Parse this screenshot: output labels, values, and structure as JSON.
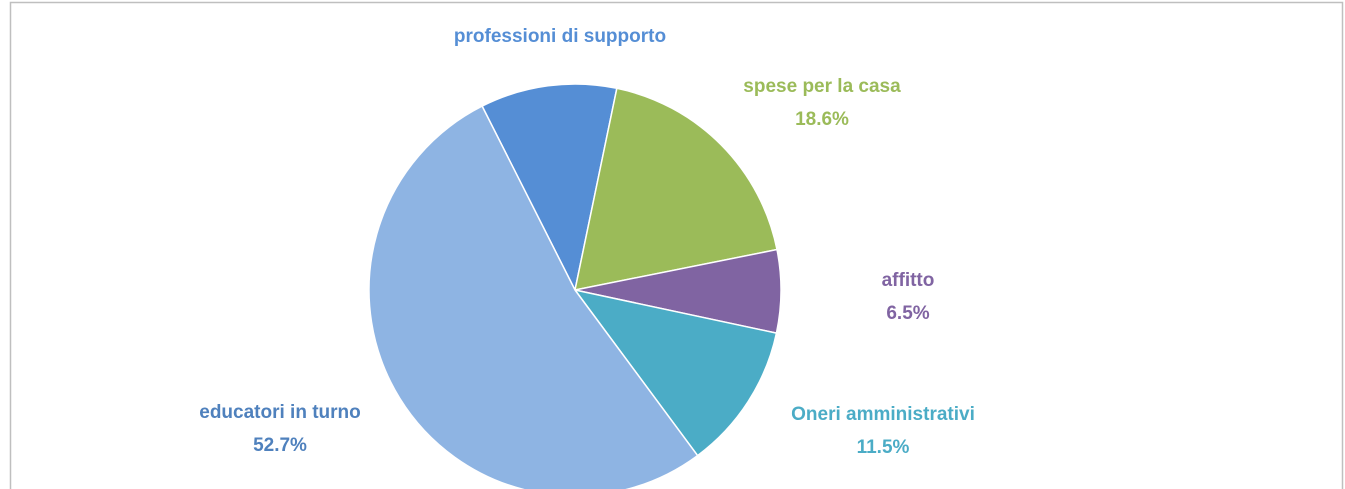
{
  "chart_data": {
    "type": "pie",
    "categories": [
      "professioni di supporto",
      "spese per la casa",
      "affitto",
      "Oneri amministrativi",
      "educatori in turno"
    ],
    "values": [
      10.7,
      18.6,
      6.5,
      11.5,
      52.7
    ],
    "value_labels": [
      null,
      "18.6%",
      "6.5%",
      "11.5%",
      "52.7%"
    ],
    "colors": [
      "#558ed5",
      "#9bbb59",
      "#8064a2",
      "#4bacc6",
      "#8eb4e3"
    ],
    "label_colors": [
      "#558ed5",
      "#9bbb59",
      "#8064a2",
      "#4bacc6",
      "#4f81bd"
    ]
  }
}
